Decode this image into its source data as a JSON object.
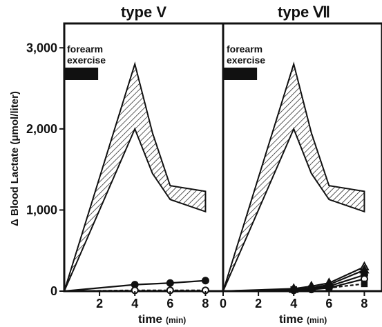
{
  "chart_data": [
    {
      "type": "area",
      "title": "type V",
      "ylabel": "Δ Blood Lactate (μmol/liter)",
      "xlabel": "time",
      "xunit": "(min)",
      "xlim": [
        0,
        9
      ],
      "ylim": [
        0,
        3300
      ],
      "xticks": [
        "2",
        "4",
        "6",
        "8"
      ],
      "yticks": [
        "0",
        "1,000",
        "2,000",
        "3,000"
      ],
      "annotation": [
        "forearm",
        "exercise"
      ],
      "exercise_bar": [
        0,
        2
      ],
      "band": {
        "x": [
          0,
          2,
          4,
          5,
          6,
          8
        ],
        "upper": [
          0,
          1400,
          2800,
          1950,
          1300,
          1230
        ],
        "lower": [
          0,
          1000,
          2000,
          1450,
          1130,
          980
        ]
      },
      "series": [
        {
          "marker": "filled-circle",
          "style": "solid",
          "x": [
            0,
            4,
            6,
            8
          ],
          "y": [
            0,
            80,
            100,
            130
          ]
        },
        {
          "marker": "open-circle",
          "style": "dashed",
          "x": [
            0,
            4,
            6,
            8
          ],
          "y": [
            0,
            10,
            10,
            10
          ]
        }
      ]
    },
    {
      "type": "area",
      "title": "type Ⅶ",
      "xlabel": "time",
      "xunit": "(min)",
      "xlim": [
        0,
        9
      ],
      "ylim": [
        0,
        3300
      ],
      "xticks": [
        "0",
        "2",
        "4",
        "6",
        "8"
      ],
      "annotation": [
        "forearm",
        "exercise"
      ],
      "exercise_bar": [
        0,
        2
      ],
      "band": {
        "x": [
          0,
          2,
          4,
          5,
          6,
          8
        ],
        "upper": [
          0,
          1400,
          2800,
          1950,
          1300,
          1230
        ],
        "lower": [
          0,
          1000,
          2000,
          1450,
          1130,
          980
        ]
      },
      "series": [
        {
          "marker": "open-triangle",
          "style": "solid",
          "x": [
            0,
            4,
            5,
            6,
            8
          ],
          "y": [
            0,
            30,
            60,
            100,
            300
          ]
        },
        {
          "marker": "filled-triangle",
          "style": "solid",
          "x": [
            0,
            4,
            5,
            6,
            8
          ],
          "y": [
            0,
            20,
            40,
            80,
            260
          ]
        },
        {
          "marker": "filled-circle",
          "style": "solid",
          "x": [
            0,
            4,
            5,
            6,
            8
          ],
          "y": [
            0,
            15,
            30,
            60,
            200
          ]
        },
        {
          "marker": "open-circle",
          "style": "solid",
          "x": [
            0,
            4,
            5,
            6,
            8
          ],
          "y": [
            0,
            10,
            20,
            40,
            150
          ]
        },
        {
          "marker": "filled-square",
          "style": "dashed",
          "x": [
            0,
            4,
            5,
            6,
            8
          ],
          "y": [
            0,
            20,
            30,
            40,
            90
          ]
        }
      ]
    }
  ]
}
